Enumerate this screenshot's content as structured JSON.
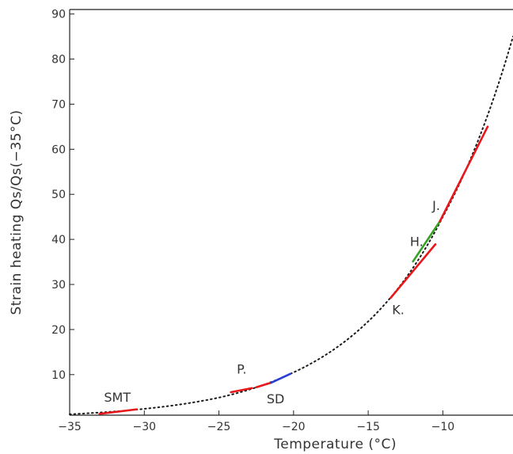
{
  "chart_data": {
    "type": "line",
    "title": "",
    "xlabel": "Temperature (°C)",
    "ylabel": "Strain heating Qs/Qs(−35°C)",
    "xlim": [
      -35,
      -5.3
    ],
    "ylim": [
      1,
      91
    ],
    "x_ticks": [
      -35,
      -30,
      -25,
      -20,
      -15,
      -10
    ],
    "y_ticks": [
      10,
      20,
      30,
      40,
      50,
      60,
      70,
      80,
      90
    ],
    "x_tick_labels": [
      "−35",
      "−30",
      "−25",
      "−20",
      "−15",
      "−10"
    ],
    "y_tick_labels": [
      "10",
      "20",
      "30",
      "40",
      "50",
      "60",
      "70",
      "80",
      "90"
    ],
    "grid": false,
    "curve": {
      "style": "dotted",
      "color": "#1a1a1a",
      "model": "exponential",
      "x": [
        -35,
        -30,
        -25,
        -20,
        -15,
        -10,
        -5.3
      ],
      "y": [
        1.2,
        2.4,
        4.9,
        10.5,
        21.8,
        45.0,
        85.0
      ]
    },
    "segments": [
      {
        "color": "#e8171b",
        "x": [
          -33.0,
          -30.5
        ],
        "y": [
          1.3,
          2.3
        ]
      },
      {
        "color": "#e8171b",
        "x": [
          -24.2,
          -22.8
        ],
        "y": [
          6.1,
          7.0
        ]
      },
      {
        "color": "#e8171b",
        "x": [
          -22.5,
          -21.5
        ],
        "y": [
          7.2,
          8.2
        ]
      },
      {
        "color": "#2a3fd6",
        "x": [
          -21.5,
          -20.2
        ],
        "y": [
          8.2,
          10.2
        ]
      },
      {
        "color": "#e8171b",
        "x": [
          -13.5,
          -10.5
        ],
        "y": [
          27.0,
          38.9
        ]
      },
      {
        "color": "#3aa327",
        "x": [
          -12.0,
          -10.2
        ],
        "y": [
          35.1,
          44.0
        ]
      },
      {
        "color": "#e8171b",
        "x": [
          -10.2,
          -7.0
        ],
        "y": [
          44.0,
          65.0
        ]
      }
    ],
    "annotations": [
      {
        "text": "SMT",
        "x": -32.7,
        "y": 4.0
      },
      {
        "text": "P.",
        "x": -23.8,
        "y": 10.2
      },
      {
        "text": "SD",
        "x": -21.8,
        "y": 3.6
      },
      {
        "text": "H.",
        "x": -12.2,
        "y": 38.5
      },
      {
        "text": "J.",
        "x": -10.7,
        "y": 46.5
      },
      {
        "text": "K.",
        "x": -13.4,
        "y": 23.4
      }
    ]
  }
}
